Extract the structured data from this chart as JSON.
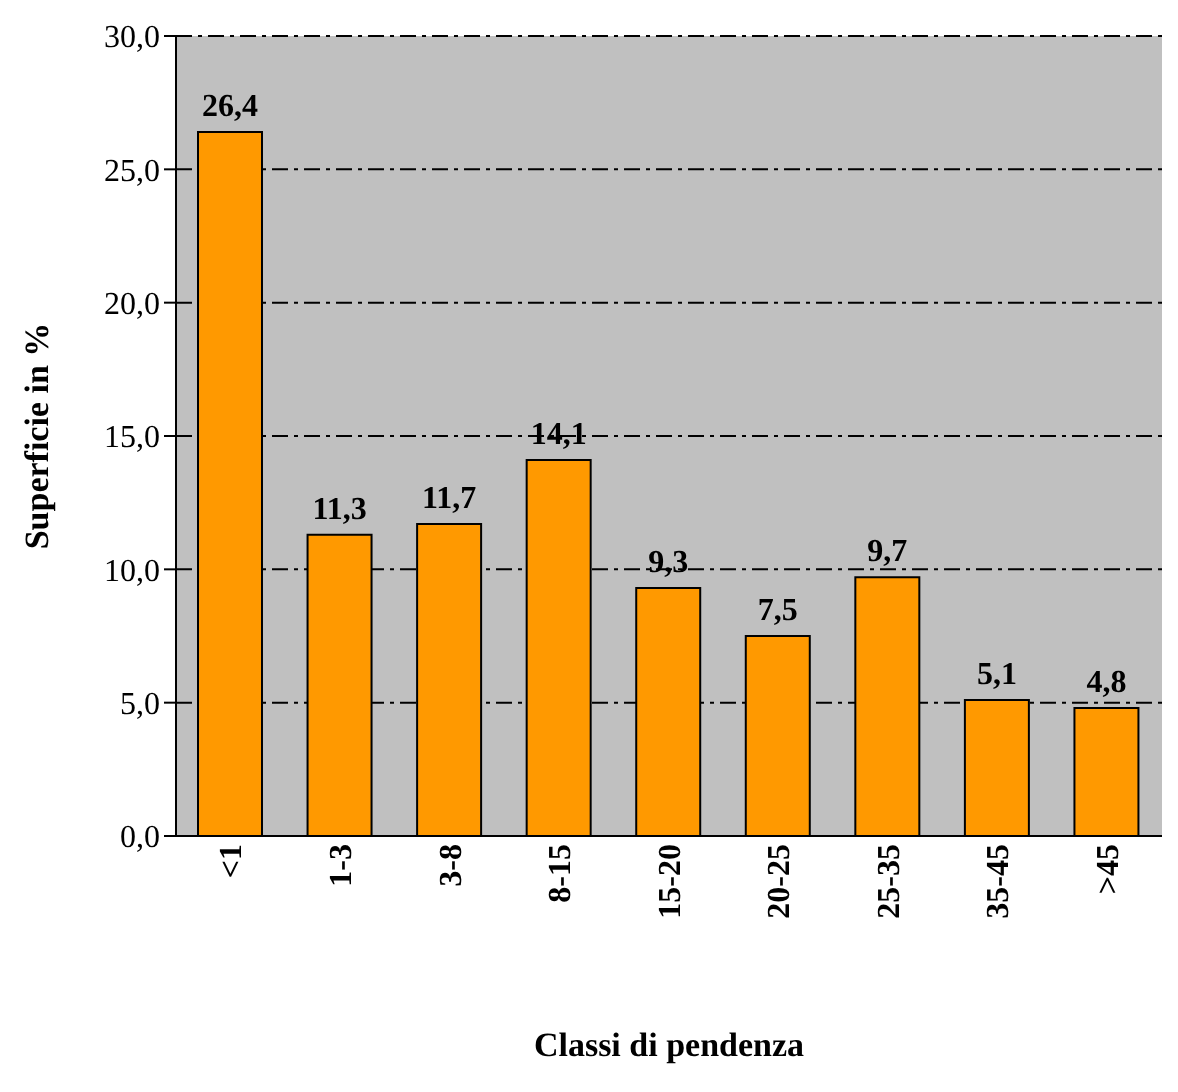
{
  "chart_data": {
    "type": "bar",
    "xlabel": "Classi di pendenza",
    "ylabel": "Superficie in %",
    "categories": [
      "<1",
      "1-3",
      "3-8",
      "8-15",
      "15-20",
      "20-25",
      "25-35",
      "35-45",
      ">45"
    ],
    "values": [
      26.4,
      11.3,
      11.7,
      14.1,
      9.3,
      7.5,
      9.7,
      5.1,
      4.8
    ],
    "value_labels": [
      "26,4",
      "11,3",
      "11,7",
      "14,1",
      "9,3",
      "7,5",
      "9,7",
      "5,1",
      "4,8"
    ],
    "color": "#ff9900",
    "ylim": [
      0,
      30
    ],
    "yticks": [
      {
        "value": 0,
        "label": "0,0"
      },
      {
        "value": 5,
        "label": "5,0"
      },
      {
        "value": 10,
        "label": "10,0"
      },
      {
        "value": 15,
        "label": "15,0"
      },
      {
        "value": 20,
        "label": "20,0"
      },
      {
        "value": 25,
        "label": "25,0"
      },
      {
        "value": 30,
        "label": "30,0"
      }
    ],
    "grid": "y"
  }
}
